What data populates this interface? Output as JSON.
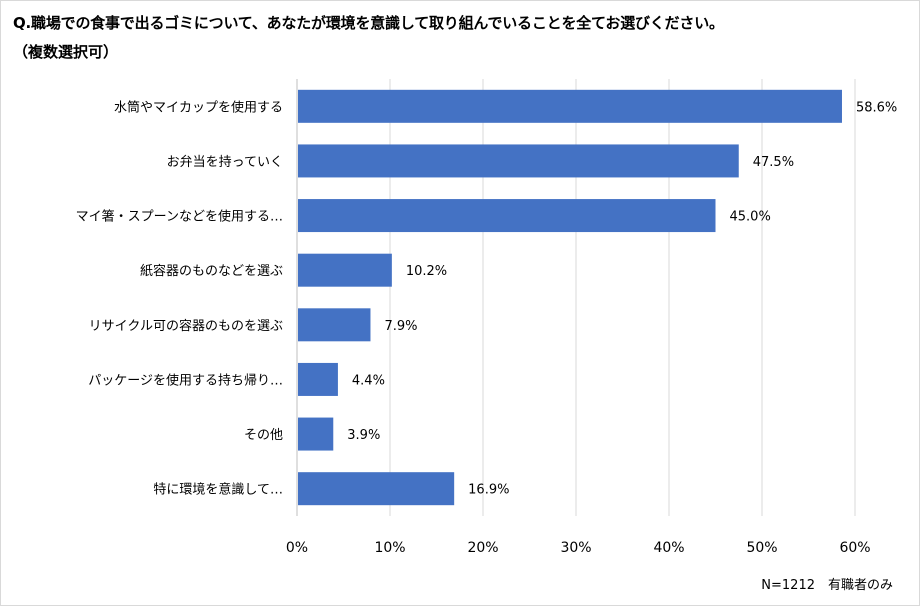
{
  "title": "Q.職場での食事で出るゴミについて、あなたが環境を意識して取り組んでいることを全てお選びください。",
  "subtitle": "（複数選択可）",
  "footnote": "N=1212　有職者のみ",
  "colors": {
    "bar": "#4472c4",
    "grid": "#d9d9d9",
    "axis": "#bfbfbf"
  },
  "chart_data": {
    "type": "bar",
    "orientation": "horizontal",
    "categories": [
      "水筒やマイカップを使用する",
      "お弁当を持っていく",
      "マイ箸・スプーンなどを使用する…",
      "紙容器のものなどを選ぶ",
      "リサイクル可の容器のものを選ぶ",
      "パッケージを使用する持ち帰り…",
      "その他",
      "特に環境を意識して…"
    ],
    "values": [
      58.6,
      47.5,
      45.0,
      10.2,
      7.9,
      4.4,
      3.9,
      16.9
    ],
    "value_labels": [
      "58.6%",
      "47.5%",
      "45.0%",
      "10.2%",
      "7.9%",
      "4.4%",
      "3.9%",
      "16.9%"
    ],
    "xlim": [
      0,
      60
    ],
    "xticks": [
      0,
      10,
      20,
      30,
      40,
      50,
      60
    ],
    "xtick_labels": [
      "0%",
      "10%",
      "20%",
      "30%",
      "40%",
      "50%",
      "60%"
    ],
    "grid": true,
    "legend": "none"
  }
}
